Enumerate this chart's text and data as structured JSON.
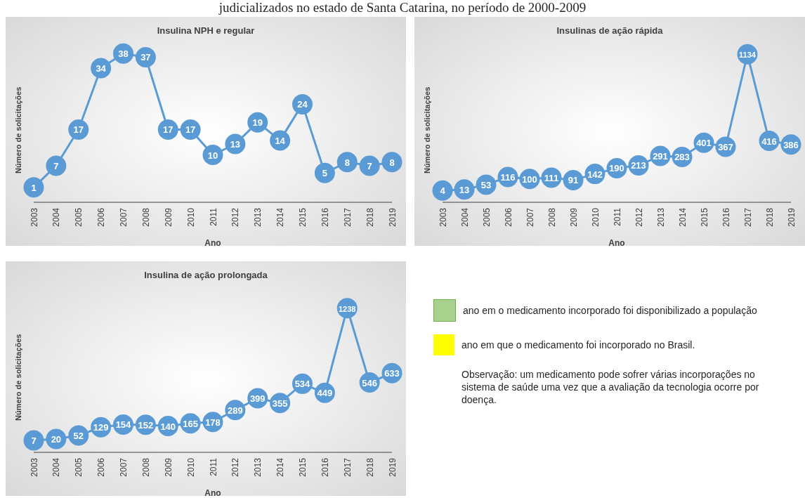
{
  "chart_data": [
    {
      "type": "line",
      "title": "Insulina NPH e regular",
      "xlabel": "Ano",
      "ylabel": "Número de solicitações",
      "categories": [
        "2003",
        "2004",
        "2005",
        "2006",
        "2007",
        "2008",
        "2009",
        "2010",
        "2011",
        "2012",
        "2013",
        "2014",
        "2015",
        "2016",
        "2017",
        "2018",
        "2019"
      ],
      "series": [
        {
          "color": "#5b9bd5",
          "values": [
            1,
            7,
            17,
            34,
            38,
            37,
            17,
            17,
            10,
            13,
            19,
            14,
            24,
            5,
            8,
            7,
            8
          ]
        }
      ],
      "tick_labels": "x",
      "legend": false,
      "marker": "circle",
      "data_labels": true
    },
    {
      "type": "line",
      "title": "Insulinas de ação rápida",
      "xlabel": "Ano",
      "ylabel": "Número de solicitações",
      "categories": [
        "2003",
        "2004",
        "2005",
        "2006",
        "2007",
        "2008",
        "2009",
        "2010",
        "2011",
        "2012",
        "2013",
        "2014",
        "2015",
        "2016",
        "2017",
        "2018",
        "2019"
      ],
      "series": [
        {
          "color": "#5b9bd5",
          "values": [
            4,
            13,
            53,
            116,
            100,
            111,
            91,
            142,
            190,
            213,
            291,
            283,
            401,
            367,
            1134,
            416,
            386
          ]
        }
      ],
      "tick_labels": "x",
      "legend": false,
      "marker": "circle",
      "data_labels": true
    },
    {
      "type": "line",
      "title": "Insulina de ação prolongada",
      "xlabel": "Ano",
      "ylabel": "Número de solicitações",
      "categories": [
        "2003",
        "2004",
        "2005",
        "2006",
        "2007",
        "2008",
        "2009",
        "2010",
        "2011",
        "2012",
        "2013",
        "2014",
        "2015",
        "2016",
        "2017",
        "2018",
        "2019"
      ],
      "series": [
        {
          "color": "#5b9bd5",
          "values": [
            7,
            20,
            52,
            129,
            154,
            152,
            140,
            165,
            178,
            289,
            399,
            355,
            534,
            449,
            1238,
            546,
            633
          ]
        }
      ],
      "tick_labels": "x",
      "legend": false,
      "marker": "circle",
      "data_labels": true
    },
    {
      "type": "other",
      "annotations": [
        "judicializados no estado de Santa Catarina, no período de 2000-2009",
        "ano em o medicamento incorporado foi disponibilizado a população",
        "ano em que o medicamento foi incorporado no Brasil.",
        "Observação: um medicamento pode sofrer várias incorporações no sistema de saúde uma vez que a avaliação da tecnologia ocorre por doença."
      ]
    }
  ]
}
